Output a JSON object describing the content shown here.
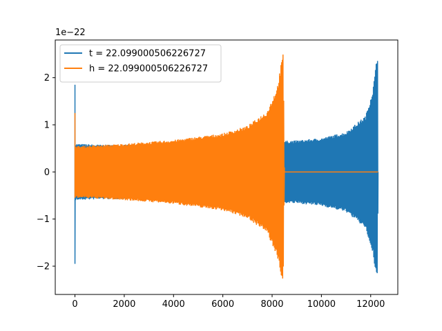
{
  "chart_data": {
    "type": "line",
    "title": "",
    "xlabel": "",
    "ylabel": "",
    "y_offset_label": "1e−22",
    "xlim": [
      -800,
      13100
    ],
    "ylim": [
      -2.6,
      2.8
    ],
    "x_ticks": [
      0,
      2000,
      4000,
      6000,
      8000,
      10000,
      12000
    ],
    "x_tick_labels": [
      "0",
      "2000",
      "4000",
      "6000",
      "8000",
      "10000",
      "12000"
    ],
    "y_ticks": [
      -2,
      -1,
      0,
      1,
      2
    ],
    "y_tick_labels": [
      "−2",
      "−1",
      "0",
      "1",
      "2"
    ],
    "grid": false,
    "legend_position": "top-left",
    "series": [
      {
        "name": "t = 22.099000506226727",
        "color": "#1f77b4",
        "points": [
          [
            0,
            1.85
          ],
          [
            0,
            -1.95
          ],
          [
            60,
            0.6
          ],
          [
            60,
            -0.6
          ],
          [
            1000,
            0.58
          ],
          [
            1000,
            -0.58
          ],
          [
            2000,
            0.58
          ],
          [
            2000,
            -0.58
          ],
          [
            4000,
            0.6
          ],
          [
            4000,
            -0.6
          ],
          [
            6000,
            0.62
          ],
          [
            6000,
            -0.62
          ],
          [
            8000,
            0.65
          ],
          [
            8000,
            -0.65
          ],
          [
            9000,
            0.67
          ],
          [
            9000,
            -0.67
          ],
          [
            10000,
            0.72
          ],
          [
            10000,
            -0.72
          ],
          [
            11000,
            0.85
          ],
          [
            11000,
            -0.85
          ],
          [
            11800,
            1.2
          ],
          [
            11800,
            -1.2
          ],
          [
            12100,
            1.8
          ],
          [
            12100,
            -1.8
          ],
          [
            12280,
            2.55
          ],
          [
            12280,
            -2.38
          ],
          [
            12300,
            0.0
          ]
        ]
      },
      {
        "name": "h = 22.099000506226727",
        "color": "#ff7f0e",
        "points": [
          [
            0,
            1.25
          ],
          [
            0,
            -0.55
          ],
          [
            60,
            0.55
          ],
          [
            60,
            -0.55
          ],
          [
            1000,
            0.57
          ],
          [
            1000,
            -0.57
          ],
          [
            2000,
            0.6
          ],
          [
            2000,
            -0.6
          ],
          [
            4000,
            0.68
          ],
          [
            4000,
            -0.68
          ],
          [
            6000,
            0.82
          ],
          [
            6000,
            -0.82
          ],
          [
            7000,
            0.98
          ],
          [
            7000,
            -0.98
          ],
          [
            7800,
            1.3
          ],
          [
            7800,
            -1.3
          ],
          [
            8200,
            1.8
          ],
          [
            8200,
            -1.8
          ],
          [
            8450,
            2.55
          ],
          [
            8450,
            -2.38
          ],
          [
            8500,
            0.0
          ],
          [
            12300,
            0.0
          ]
        ]
      }
    ]
  }
}
